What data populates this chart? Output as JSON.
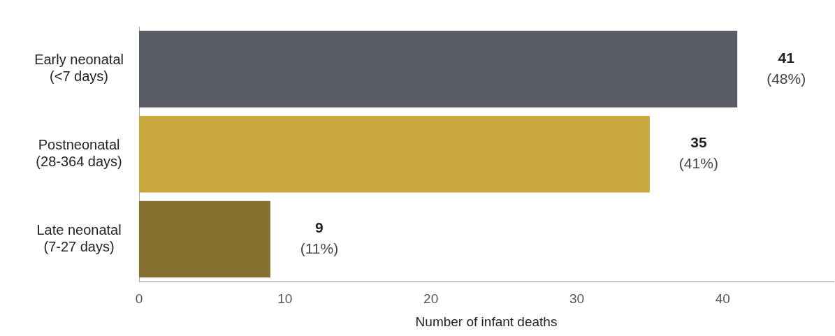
{
  "chart_data": {
    "type": "bar",
    "orientation": "horizontal",
    "xlabel": "Number of infant deaths",
    "categories": [
      "Early neonatal\n(<7 days)",
      "Postneonatal\n(28-364 days)",
      "Late neonatal\n(7-27 days)"
    ],
    "values": [
      41,
      35,
      9
    ],
    "colors": [
      "#5a5d66",
      "#c8a83c",
      "#857030"
    ],
    "value_labels": [
      "41\n(48%)",
      "35\n(41%)",
      "9\n(11%)"
    ],
    "xlim": [
      0,
      47.6
    ],
    "xticks": [
      0,
      10,
      20,
      30,
      40
    ],
    "grid": false,
    "legend": false
  }
}
